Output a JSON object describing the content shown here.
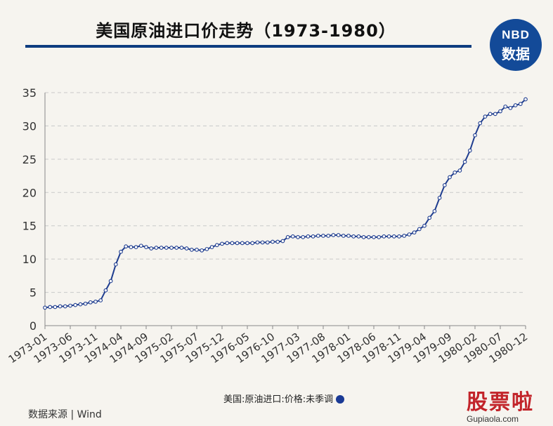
{
  "header": {
    "title": "美国原油进口价走势（1973-1980）"
  },
  "logo": {
    "line1": "NBD",
    "line2": "数据"
  },
  "legend": {
    "label": "美国:原油进口:价格:未季调"
  },
  "footer": {
    "source": "数据来源 | Wind"
  },
  "corner_mark": {
    "text": "股票啦",
    "url": "Gupiaola.com"
  },
  "colors": {
    "series": "#1f3d8f",
    "accent": "#0d3c7f",
    "grid": "#c9c9c9"
  },
  "chart_data": {
    "type": "line",
    "title": "美国原油进口价走势（1973-1980）",
    "xlabel": "",
    "ylabel": "",
    "ylim": [
      0,
      35
    ],
    "yticks": [
      0,
      5,
      10,
      15,
      20,
      25,
      30,
      35
    ],
    "grid": true,
    "x_ticks": [
      "1973-01",
      "1973-06",
      "1973-11",
      "1974-04",
      "1974-09",
      "1975-02",
      "1975-07",
      "1975-12",
      "1976-05",
      "1976-10",
      "1977-03",
      "1977-08",
      "1978-01",
      "1978-06",
      "1978-11",
      "1979-04",
      "1979-09",
      "1980-02",
      "1980-07",
      "1980-12"
    ],
    "x_start": "1973-01",
    "series": [
      {
        "name": "美国:原油进口:价格:未季调",
        "values": [
          2.7,
          2.8,
          2.8,
          2.9,
          2.9,
          3.0,
          3.1,
          3.2,
          3.3,
          3.5,
          3.6,
          3.8,
          5.3,
          6.7,
          9.2,
          11.1,
          11.9,
          11.8,
          11.8,
          12.0,
          11.8,
          11.6,
          11.7,
          11.7,
          11.7,
          11.7,
          11.7,
          11.7,
          11.6,
          11.4,
          11.4,
          11.3,
          11.5,
          11.8,
          12.1,
          12.3,
          12.4,
          12.4,
          12.4,
          12.4,
          12.4,
          12.4,
          12.5,
          12.5,
          12.5,
          12.6,
          12.6,
          12.7,
          13.3,
          13.4,
          13.3,
          13.3,
          13.4,
          13.4,
          13.5,
          13.5,
          13.5,
          13.6,
          13.6,
          13.5,
          13.5,
          13.4,
          13.4,
          13.3,
          13.3,
          13.3,
          13.3,
          13.4,
          13.4,
          13.4,
          13.4,
          13.5,
          13.7,
          14.0,
          14.5,
          15.0,
          16.2,
          17.2,
          19.2,
          21.1,
          22.3,
          23.0,
          23.3,
          24.6,
          26.3,
          28.6,
          30.4,
          31.4,
          31.8,
          31.8,
          32.2,
          32.9,
          32.7,
          33.1,
          33.3,
          34.0
        ]
      }
    ]
  }
}
